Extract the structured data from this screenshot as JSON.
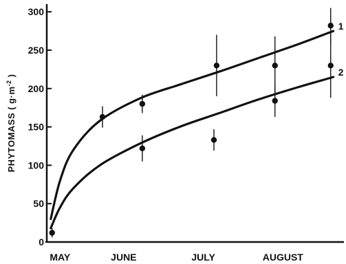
{
  "chart_data": {
    "type": "scatter",
    "title": "",
    "ylabel": "PHYTOMASS  ( g·m",
    "ylabel_exp": "-2",
    "ylabel_close": " )",
    "xlabel": "",
    "ylim": [
      0,
      310
    ],
    "xlim": [
      0,
      112
    ],
    "grid": false,
    "legend": "none",
    "y_ticks": [
      0,
      50,
      100,
      150,
      200,
      250,
      300
    ],
    "x_months": [
      {
        "label": "MAY",
        "x": 5
      },
      {
        "label": "JUNE",
        "x": 29
      },
      {
        "label": "JULY",
        "x": 59
      },
      {
        "label": "AUGUST",
        "x": 89
      }
    ],
    "series": [
      {
        "label": "1",
        "points": [
          {
            "x": 2,
            "y": 12,
            "err": 6
          },
          {
            "x": 21,
            "y": 163,
            "err": 14
          },
          {
            "x": 36,
            "y": 180,
            "err": 12
          },
          {
            "x": 64,
            "y": 230,
            "err": 40
          },
          {
            "x": 86,
            "y": 230,
            "err": 38
          },
          {
            "x": 107,
            "y": 282,
            "err": 23
          }
        ],
        "curve": [
          [
            1.5,
            30
          ],
          [
            5,
            80
          ],
          [
            10,
            120
          ],
          [
            20,
            158
          ],
          [
            35,
            187
          ],
          [
            50,
            205
          ],
          [
            65,
            222
          ],
          [
            80,
            240
          ],
          [
            95,
            258
          ],
          [
            108,
            275
          ]
        ]
      },
      {
        "label": "2",
        "points": [
          {
            "x": 36,
            "y": 122,
            "err": 17
          },
          {
            "x": 63,
            "y": 133,
            "err": 14
          },
          {
            "x": 86,
            "y": 184,
            "err": 21
          },
          {
            "x": 107,
            "y": 230,
            "err": 42
          }
        ],
        "curve": [
          [
            1.5,
            18
          ],
          [
            5,
            45
          ],
          [
            10,
            70
          ],
          [
            20,
            100
          ],
          [
            35,
            128
          ],
          [
            50,
            150
          ],
          [
            65,
            168
          ],
          [
            80,
            186
          ],
          [
            95,
            202
          ],
          [
            108,
            215
          ]
        ]
      }
    ]
  }
}
